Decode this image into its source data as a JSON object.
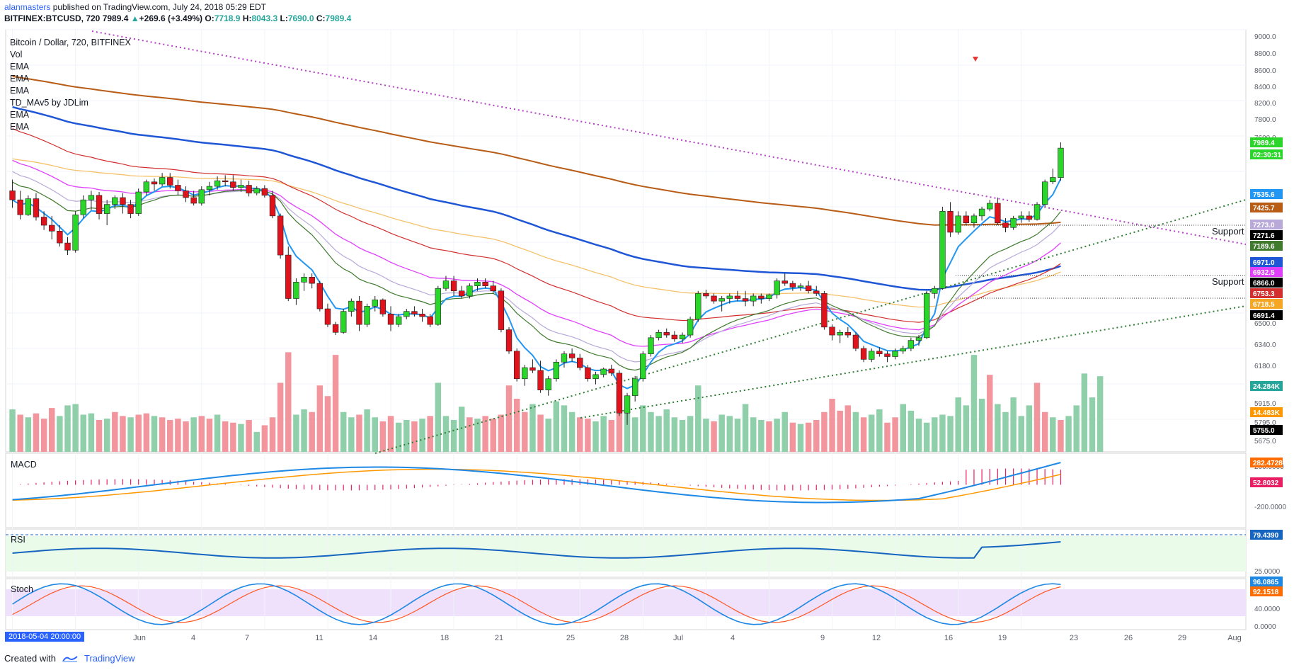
{
  "header": {
    "user": "alanmasters",
    "published": " published on TradingView.com, July 24, 2018 05:29 EDT",
    "symbol": "BITFINEX:BTCUSD, 720",
    "last": "7989.4",
    "change": "+269.6 (+3.49%)",
    "o_label": "O:",
    "o": "7718.9",
    "h_label": "H:",
    "h": "8043.3",
    "l_label": "L:",
    "l": "7690.0",
    "c_label": "C:",
    "c": "7989.4"
  },
  "legend": {
    "title": "Bitcoin / Dollar, 720, BITFINEX",
    "items": [
      "Vol",
      "EMA",
      "EMA",
      "EMA",
      "TD_MAv5 by JDLim",
      "EMA",
      "EMA"
    ]
  },
  "panes": {
    "macd": "MACD",
    "rsi": "RSI",
    "stoch": "Stoch"
  },
  "annotations": {
    "support1": "Support",
    "support2": "Support"
  },
  "date_tag": "2018-05-04 20:00:00",
  "footer": {
    "created": "Created with",
    "brand": "TradingView"
  },
  "colors": {
    "up": "#26a69a",
    "up_bright": "#2bd62b",
    "down": "#e0121c",
    "vol_up": "#8fcfaa",
    "vol_down": "#f2959c"
  },
  "price_axis": [
    "9000.0",
    "8800.0",
    "8600.0",
    "8400.0",
    "8200.0",
    "7800.0",
    "7600.0",
    "6500.0",
    "6340.0",
    "6180.0",
    "5915.0",
    "5795.0",
    "5675.0"
  ],
  "price_tags": [
    {
      "text": "7989.4",
      "color": "#2bd62b"
    },
    {
      "text": "02:30:31",
      "color": "#2bd62b"
    },
    {
      "text": "7535.6",
      "color": "#2196f3"
    },
    {
      "text": "7425.7",
      "color": "#b85c16"
    },
    {
      "text": "7273.0",
      "color": "#b8a9d9"
    },
    {
      "text": "7271.6",
      "color": "#000000"
    },
    {
      "text": "7189.6",
      "color": "#3f7a2d"
    },
    {
      "text": "6971.0",
      "color": "#1e56d6"
    },
    {
      "text": "6932.5",
      "color": "#e040fb"
    },
    {
      "text": "6866.0",
      "color": "#000000"
    },
    {
      "text": "6753.3",
      "color": "#d32f2f"
    },
    {
      "text": "6718.5",
      "color": "#f5a623"
    },
    {
      "text": "6691.4",
      "color": "#000000"
    },
    {
      "text": "24.284K",
      "color": "#26a69a"
    },
    {
      "text": "14.483K",
      "color": "#ff9800"
    },
    {
      "text": "5755.0",
      "color": "#000000"
    }
  ],
  "macd_axis": [
    "200.0000",
    "-200.0000"
  ],
  "macd_tags": [
    {
      "text": "282.4728",
      "color": "#ff6d00"
    },
    {
      "text": "52.8032",
      "color": "#e91e63"
    }
  ],
  "rsi_axis": [
    "25.0000"
  ],
  "rsi_tags": [
    {
      "text": "79.4390",
      "color": "#1565c0"
    }
  ],
  "stoch_axis": [
    "40.0000",
    "0.0000"
  ],
  "stoch_tags": [
    {
      "text": "96.0865",
      "color": "#1e88e5"
    },
    {
      "text": "92.1518",
      "color": "#ff6d00"
    }
  ],
  "time_axis": [
    "Jun",
    "4",
    "7",
    "11",
    "14",
    "18",
    "21",
    "25",
    "28",
    "Jul",
    "4",
    "9",
    "12",
    "16",
    "19",
    "23",
    "26",
    "29",
    "Aug"
  ],
  "chart_data": {
    "type": "candlestick",
    "title": "Bitcoin / Dollar, 720, BITFINEX",
    "interval": "720",
    "ylim": [
      5600,
      9100
    ],
    "y_scale": "log",
    "grid": true,
    "last_close": 7989.4,
    "ohlc": [
      [
        7600,
        7700,
        7450,
        7520
      ],
      [
        7520,
        7600,
        7350,
        7390
      ],
      [
        7390,
        7560,
        7380,
        7530
      ],
      [
        7530,
        7580,
        7340,
        7370
      ],
      [
        7370,
        7420,
        7260,
        7300
      ],
      [
        7300,
        7380,
        7180,
        7250
      ],
      [
        7250,
        7300,
        7120,
        7150
      ],
      [
        7150,
        7200,
        7050,
        7090
      ],
      [
        7090,
        7420,
        7070,
        7390
      ],
      [
        7390,
        7560,
        7360,
        7520
      ],
      [
        7520,
        7600,
        7430,
        7560
      ],
      [
        7560,
        7590,
        7350,
        7400
      ],
      [
        7400,
        7520,
        7300,
        7480
      ],
      [
        7480,
        7560,
        7440,
        7540
      ],
      [
        7540,
        7580,
        7400,
        7480
      ],
      [
        7480,
        7520,
        7360,
        7400
      ],
      [
        7400,
        7620,
        7380,
        7590
      ],
      [
        7590,
        7700,
        7560,
        7680
      ],
      [
        7680,
        7710,
        7600,
        7660
      ],
      [
        7660,
        7760,
        7640,
        7720
      ],
      [
        7720,
        7760,
        7620,
        7650
      ],
      [
        7650,
        7700,
        7560,
        7600
      ],
      [
        7600,
        7640,
        7500,
        7540
      ],
      [
        7540,
        7600,
        7470,
        7490
      ],
      [
        7490,
        7640,
        7470,
        7610
      ],
      [
        7610,
        7680,
        7560,
        7640
      ],
      [
        7640,
        7730,
        7610,
        7690
      ],
      [
        7690,
        7740,
        7640,
        7680
      ],
      [
        7680,
        7740,
        7600,
        7630
      ],
      [
        7630,
        7700,
        7590,
        7650
      ],
      [
        7650,
        7690,
        7550,
        7580
      ],
      [
        7580,
        7640,
        7560,
        7620
      ],
      [
        7620,
        7650,
        7540,
        7560
      ],
      [
        7560,
        7600,
        7360,
        7380
      ],
      [
        7380,
        7400,
        7020,
        7050
      ],
      [
        7050,
        7120,
        6680,
        6700
      ],
      [
        6700,
        6860,
        6650,
        6830
      ],
      [
        6830,
        6900,
        6760,
        6870
      ],
      [
        6870,
        6900,
        6780,
        6820
      ],
      [
        6820,
        6840,
        6600,
        6620
      ],
      [
        6620,
        6660,
        6480,
        6500
      ],
      [
        6500,
        6520,
        6420,
        6440
      ],
      [
        6440,
        6620,
        6430,
        6600
      ],
      [
        6600,
        6700,
        6560,
        6680
      ],
      [
        6680,
        6720,
        6450,
        6500
      ],
      [
        6500,
        6660,
        6480,
        6640
      ],
      [
        6640,
        6720,
        6600,
        6690
      ],
      [
        6690,
        6700,
        6560,
        6580
      ],
      [
        6580,
        6640,
        6450,
        6500
      ],
      [
        6500,
        6580,
        6480,
        6560
      ],
      [
        6560,
        6620,
        6540,
        6600
      ],
      [
        6600,
        6640,
        6560,
        6580
      ],
      [
        6580,
        6620,
        6520,
        6560
      ],
      [
        6560,
        6580,
        6480,
        6500
      ],
      [
        6500,
        6800,
        6490,
        6780
      ],
      [
        6780,
        6880,
        6760,
        6840
      ],
      [
        6840,
        6880,
        6720,
        6760
      ],
      [
        6760,
        6800,
        6700,
        6720
      ],
      [
        6720,
        6820,
        6700,
        6800
      ],
      [
        6800,
        6860,
        6760,
        6830
      ],
      [
        6830,
        6860,
        6780,
        6800
      ],
      [
        6800,
        6840,
        6740,
        6760
      ],
      [
        6760,
        6780,
        6440,
        6460
      ],
      [
        6460,
        6480,
        6280,
        6300
      ],
      [
        6300,
        6320,
        6080,
        6100
      ],
      [
        6100,
        6200,
        6050,
        6180
      ],
      [
        6180,
        6240,
        6140,
        6160
      ],
      [
        6160,
        6230,
        6000,
        6020
      ],
      [
        6020,
        6120,
        5980,
        6100
      ],
      [
        6100,
        6240,
        6080,
        6220
      ],
      [
        6220,
        6300,
        6180,
        6280
      ],
      [
        6280,
        6320,
        6220,
        6250
      ],
      [
        6250,
        6280,
        6160,
        6180
      ],
      [
        6180,
        6200,
        6080,
        6100
      ],
      [
        6100,
        6150,
        6060,
        6130
      ],
      [
        6130,
        6180,
        6110,
        6170
      ],
      [
        6170,
        6200,
        6120,
        6140
      ],
      [
        6140,
        6160,
        5840,
        5860
      ],
      [
        5860,
        6000,
        5780,
        5980
      ],
      [
        5980,
        6120,
        5940,
        6100
      ],
      [
        6100,
        6300,
        6080,
        6280
      ],
      [
        6280,
        6420,
        6260,
        6400
      ],
      [
        6400,
        6460,
        6380,
        6440
      ],
      [
        6440,
        6470,
        6400,
        6420
      ],
      [
        6420,
        6450,
        6370,
        6390
      ],
      [
        6390,
        6440,
        6360,
        6420
      ],
      [
        6420,
        6560,
        6400,
        6540
      ],
      [
        6540,
        6760,
        6520,
        6740
      ],
      [
        6740,
        6770,
        6700,
        6720
      ],
      [
        6720,
        6740,
        6660,
        6680
      ],
      [
        6680,
        6720,
        6600,
        6700
      ],
      [
        6700,
        6740,
        6660,
        6720
      ],
      [
        6720,
        6760,
        6680,
        6700
      ],
      [
        6700,
        6760,
        6640,
        6680
      ],
      [
        6680,
        6740,
        6640,
        6720
      ],
      [
        6720,
        6740,
        6660,
        6700
      ],
      [
        6700,
        6740,
        6680,
        6730
      ],
      [
        6730,
        6860,
        6700,
        6840
      ],
      [
        6840,
        6900,
        6800,
        6820
      ],
      [
        6820,
        6840,
        6760,
        6790
      ],
      [
        6790,
        6820,
        6760,
        6800
      ],
      [
        6800,
        6840,
        6740,
        6760
      ],
      [
        6760,
        6800,
        6720,
        6740
      ],
      [
        6740,
        6760,
        6460,
        6480
      ],
      [
        6480,
        6500,
        6380,
        6420
      ],
      [
        6420,
        6460,
        6360,
        6440
      ],
      [
        6440,
        6480,
        6400,
        6420
      ],
      [
        6420,
        6440,
        6300,
        6320
      ],
      [
        6320,
        6340,
        6220,
        6240
      ],
      [
        6240,
        6320,
        6220,
        6300
      ],
      [
        6300,
        6330,
        6260,
        6280
      ],
      [
        6280,
        6300,
        6220,
        6260
      ],
      [
        6260,
        6320,
        6240,
        6300
      ],
      [
        6300,
        6340,
        6280,
        6320
      ],
      [
        6320,
        6400,
        6300,
        6380
      ],
      [
        6380,
        6420,
        6340,
        6400
      ],
      [
        6400,
        6760,
        6390,
        6740
      ],
      [
        6740,
        6800,
        6700,
        6780
      ],
      [
        6780,
        7460,
        6770,
        7420
      ],
      [
        7420,
        7500,
        7200,
        7240
      ],
      [
        7240,
        7420,
        7220,
        7380
      ],
      [
        7380,
        7420,
        7300,
        7320
      ],
      [
        7320,
        7400,
        7280,
        7380
      ],
      [
        7380,
        7460,
        7340,
        7440
      ],
      [
        7440,
        7520,
        7420,
        7490
      ],
      [
        7490,
        7540,
        7300,
        7320
      ],
      [
        7320,
        7360,
        7240,
        7280
      ],
      [
        7280,
        7380,
        7260,
        7360
      ],
      [
        7360,
        7420,
        7320,
        7380
      ],
      [
        7380,
        7420,
        7330,
        7350
      ],
      [
        7350,
        7500,
        7340,
        7480
      ],
      [
        7480,
        7700,
        7460,
        7680
      ],
      [
        7680,
        7800,
        7660,
        7720
      ],
      [
        7718.9,
        8043.3,
        7690.0,
        7989.4
      ]
    ],
    "volume": [
      [
        3200,
        "u"
      ],
      [
        2800,
        "d"
      ],
      [
        2600,
        "u"
      ],
      [
        2900,
        "d"
      ],
      [
        2500,
        "d"
      ],
      [
        3300,
        "d"
      ],
      [
        2700,
        "u"
      ],
      [
        3500,
        "u"
      ],
      [
        3600,
        "u"
      ],
      [
        2800,
        "u"
      ],
      [
        2900,
        "u"
      ],
      [
        2400,
        "d"
      ],
      [
        2500,
        "u"
      ],
      [
        3000,
        "d"
      ],
      [
        2700,
        "d"
      ],
      [
        2600,
        "u"
      ],
      [
        2800,
        "d"
      ],
      [
        2900,
        "d"
      ],
      [
        2700,
        "u"
      ],
      [
        2600,
        "d"
      ],
      [
        2400,
        "d"
      ],
      [
        2500,
        "d"
      ],
      [
        2300,
        "d"
      ],
      [
        2600,
        "u"
      ],
      [
        2700,
        "d"
      ],
      [
        2500,
        "d"
      ],
      [
        2800,
        "u"
      ],
      [
        2300,
        "d"
      ],
      [
        2200,
        "d"
      ],
      [
        2100,
        "u"
      ],
      [
        2400,
        "d"
      ],
      [
        1500,
        "u"
      ],
      [
        2000,
        "d"
      ],
      [
        2600,
        "d"
      ],
      [
        5200,
        "d"
      ],
      [
        7500,
        "d"
      ],
      [
        2800,
        "u"
      ],
      [
        3200,
        "u"
      ],
      [
        3000,
        "d"
      ],
      [
        5000,
        "d"
      ],
      [
        4200,
        "d"
      ],
      [
        7300,
        "d"
      ],
      [
        3000,
        "u"
      ],
      [
        2600,
        "u"
      ],
      [
        2800,
        "d"
      ],
      [
        3200,
        "u"
      ],
      [
        2600,
        "u"
      ],
      [
        2300,
        "d"
      ],
      [
        2700,
        "d"
      ],
      [
        2200,
        "u"
      ],
      [
        2400,
        "u"
      ],
      [
        2300,
        "d"
      ],
      [
        2500,
        "u"
      ],
      [
        2700,
        "d"
      ],
      [
        5200,
        "u"
      ],
      [
        2700,
        "u"
      ],
      [
        2400,
        "u"
      ],
      [
        3400,
        "u"
      ],
      [
        2600,
        "d"
      ],
      [
        2500,
        "u"
      ],
      [
        2700,
        "d"
      ],
      [
        2500,
        "d"
      ],
      [
        2800,
        "d"
      ],
      [
        5000,
        "d"
      ],
      [
        4000,
        "d"
      ],
      [
        3000,
        "d"
      ],
      [
        3600,
        "u"
      ],
      [
        2800,
        "d"
      ],
      [
        2500,
        "u"
      ],
      [
        3800,
        "u"
      ],
      [
        3500,
        "u"
      ],
      [
        3000,
        "u"
      ],
      [
        2600,
        "d"
      ],
      [
        2500,
        "d"
      ],
      [
        2300,
        "u"
      ],
      [
        2700,
        "u"
      ],
      [
        2400,
        "d"
      ],
      [
        4500,
        "d"
      ],
      [
        3100,
        "u"
      ],
      [
        2600,
        "u"
      ],
      [
        3500,
        "u"
      ],
      [
        3000,
        "u"
      ],
      [
        2700,
        "u"
      ],
      [
        3200,
        "u"
      ],
      [
        2600,
        "u"
      ],
      [
        2400,
        "u"
      ],
      [
        2700,
        "u"
      ],
      [
        5000,
        "u"
      ],
      [
        2500,
        "u"
      ],
      [
        2300,
        "d"
      ],
      [
        2800,
        "u"
      ],
      [
        2700,
        "u"
      ],
      [
        2500,
        "u"
      ],
      [
        3600,
        "u"
      ],
      [
        2600,
        "u"
      ],
      [
        2400,
        "u"
      ],
      [
        2300,
        "d"
      ],
      [
        2500,
        "u"
      ],
      [
        3000,
        "u"
      ],
      [
        2200,
        "d"
      ],
      [
        2100,
        "u"
      ],
      [
        2200,
        "d"
      ],
      [
        2400,
        "d"
      ],
      [
        3000,
        "d"
      ],
      [
        4000,
        "d"
      ],
      [
        3100,
        "d"
      ],
      [
        3500,
        "d"
      ],
      [
        3000,
        "u"
      ],
      [
        2600,
        "d"
      ],
      [
        2800,
        "u"
      ],
      [
        3200,
        "u"
      ],
      [
        2200,
        "d"
      ],
      [
        2600,
        "d"
      ],
      [
        3600,
        "u"
      ],
      [
        3100,
        "u"
      ],
      [
        2500,
        "u"
      ],
      [
        2200,
        "u"
      ],
      [
        2600,
        "u"
      ],
      [
        2800,
        "u"
      ],
      [
        2700,
        "u"
      ],
      [
        4100,
        "u"
      ],
      [
        3500,
        "u"
      ],
      [
        7300,
        "u"
      ],
      [
        4000,
        "u"
      ],
      [
        5800,
        "d"
      ],
      [
        3600,
        "u"
      ],
      [
        3000,
        "u"
      ],
      [
        4100,
        "u"
      ],
      [
        2700,
        "u"
      ],
      [
        3500,
        "u"
      ],
      [
        5200,
        "d"
      ],
      [
        3000,
        "d"
      ],
      [
        2600,
        "u"
      ],
      [
        2400,
        "d"
      ],
      [
        2700,
        "u"
      ],
      [
        3500,
        "u"
      ],
      [
        5900,
        "u"
      ],
      [
        4100,
        "u"
      ],
      [
        5700,
        "u"
      ]
    ]
  }
}
